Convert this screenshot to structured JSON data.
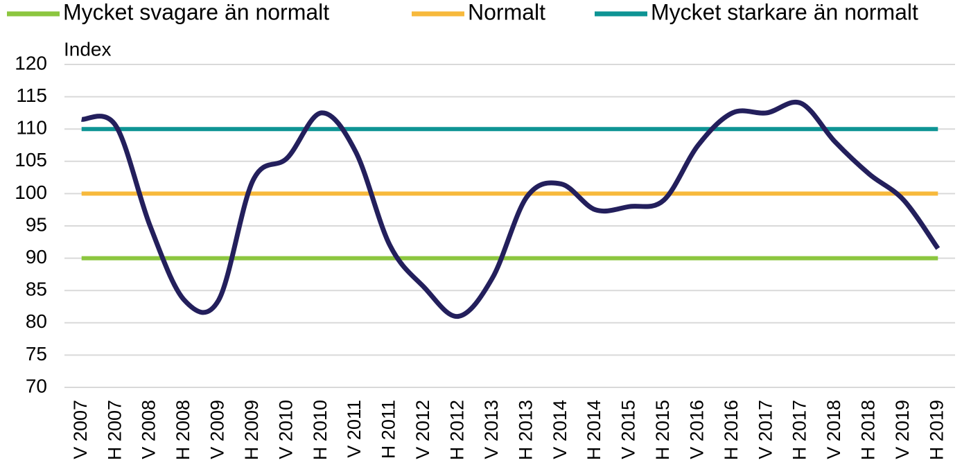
{
  "chart_data": {
    "type": "line",
    "y_label": "Index",
    "categories": [
      "V 2007",
      "H 2007",
      "V 2008",
      "H 2008",
      "V 2009",
      "H 2009",
      "V 2010",
      "H 2010",
      "V 2011",
      "H 2011",
      "V 2012",
      "H 2012",
      "V 2013",
      "H 2013",
      "V 2014",
      "H 2014",
      "V 2015",
      "H 2015",
      "V 2016",
      "H 2016",
      "V 2017",
      "H 2017",
      "V 2018",
      "H 2018",
      "V 2019",
      "H 2019"
    ],
    "series": [
      {
        "name": "Mycket svagare än normalt",
        "color": "#8cc63f",
        "values": [
          90,
          90,
          90,
          90,
          90,
          90,
          90,
          90,
          90,
          90,
          90,
          90,
          90,
          90,
          90,
          90,
          90,
          90,
          90,
          90,
          90,
          90,
          90,
          90,
          90,
          90
        ]
      },
      {
        "name": "Normalt",
        "color": "#f7b93c",
        "values": [
          100,
          100,
          100,
          100,
          100,
          100,
          100,
          100,
          100,
          100,
          100,
          100,
          100,
          100,
          100,
          100,
          100,
          100,
          100,
          100,
          100,
          100,
          100,
          100,
          100,
          100
        ]
      },
      {
        "name": "Mycket starkare än normalt",
        "color": "#0e9494",
        "values": [
          110,
          110,
          110,
          110,
          110,
          110,
          110,
          110,
          110,
          110,
          110,
          110,
          110,
          110,
          110,
          110,
          110,
          110,
          110,
          110,
          110,
          110,
          110,
          110,
          110,
          110
        ]
      },
      {
        "color": "#231f5c",
        "smooth": true,
        "values": [
          111.5,
          110.5,
          95,
          83.5,
          83.5,
          102,
          105.5,
          112.5,
          106.5,
          92,
          85.5,
          81,
          87,
          99.5,
          101.5,
          97.5,
          98,
          99,
          107.5,
          112.5,
          112.5,
          114,
          108,
          103,
          99,
          91.5
        ]
      }
    ],
    "ylim": [
      70,
      120
    ],
    "yticks": [
      70,
      75,
      80,
      85,
      90,
      95,
      100,
      105,
      110,
      115,
      120
    ],
    "grid": true,
    "legend": "top"
  }
}
